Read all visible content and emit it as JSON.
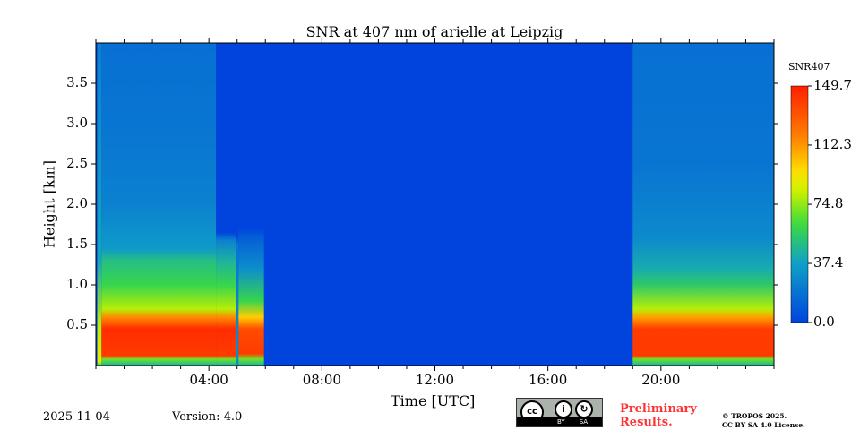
{
  "chart_data": {
    "type": "heatmap",
    "title": "SNR at 407 nm of arielle at Leipzig",
    "xlabel": "Time [UTC]",
    "ylabel": "Height [km]",
    "xlim_hours": [
      0,
      24
    ],
    "ylim": [
      0,
      4.0
    ],
    "xticks": [
      {
        "v": 4,
        "label": "04:00"
      },
      {
        "v": 8,
        "label": "08:00"
      },
      {
        "v": 12,
        "label": "12:00"
      },
      {
        "v": 16,
        "label": "16:00"
      },
      {
        "v": 20,
        "label": "20:00"
      }
    ],
    "yticks": [
      {
        "v": 0.5,
        "label": "0.5"
      },
      {
        "v": 1.0,
        "label": "1.0"
      },
      {
        "v": 1.5,
        "label": "1.5"
      },
      {
        "v": 2.0,
        "label": "2.0"
      },
      {
        "v": 2.5,
        "label": "2.5"
      },
      {
        "v": 3.0,
        "label": "3.0"
      },
      {
        "v": 3.5,
        "label": "3.5"
      }
    ],
    "colorbar": {
      "label": "SNR407",
      "min": 0,
      "max": 149.7,
      "ticks": [
        "0.0",
        "37.4",
        "74.8",
        "112.3",
        "149.7"
      ],
      "colormap": "jet"
    },
    "background_value": 0,
    "segments": [
      {
        "start": 0.05,
        "end": 0.2,
        "profile": [
          [
            0,
            60
          ],
          [
            0.05,
            90
          ],
          [
            0.5,
            80
          ],
          [
            1.3,
            40
          ],
          [
            4.0,
            25
          ]
        ]
      },
      {
        "start": 0.2,
        "end": 4.25,
        "profile": [
          [
            0,
            45
          ],
          [
            0.08,
            70
          ],
          [
            0.12,
            140
          ],
          [
            0.45,
            145
          ],
          [
            0.6,
            115
          ],
          [
            0.7,
            80
          ],
          [
            1.0,
            60
          ],
          [
            1.3,
            50
          ],
          [
            1.45,
            35
          ],
          [
            2.0,
            25
          ],
          [
            3.0,
            20
          ],
          [
            4.0,
            18
          ]
        ]
      },
      {
        "start": 4.25,
        "end": 4.95,
        "profile": [
          [
            0,
            45
          ],
          [
            0.08,
            70
          ],
          [
            0.12,
            140
          ],
          [
            0.45,
            145
          ],
          [
            0.6,
            115
          ],
          [
            0.7,
            80
          ],
          [
            1.0,
            60
          ],
          [
            1.3,
            45
          ],
          [
            1.55,
            25
          ],
          [
            1.65,
            0
          ],
          [
            4.0,
            0
          ]
        ]
      },
      {
        "start": 4.95,
        "end": 5.05,
        "profile": [
          [
            0,
            30
          ],
          [
            1.5,
            20
          ],
          [
            1.6,
            0
          ],
          [
            4.0,
            0
          ]
        ]
      },
      {
        "start": 5.05,
        "end": 5.95,
        "profile": [
          [
            0,
            45
          ],
          [
            0.08,
            70
          ],
          [
            0.15,
            140
          ],
          [
            0.45,
            135
          ],
          [
            0.6,
            100
          ],
          [
            0.8,
            60
          ],
          [
            1.2,
            30
          ],
          [
            1.6,
            10
          ],
          [
            1.7,
            0
          ],
          [
            4.0,
            0
          ]
        ]
      },
      {
        "start": 19.0,
        "end": 24.0,
        "profile": [
          [
            0,
            45
          ],
          [
            0.08,
            70
          ],
          [
            0.12,
            140
          ],
          [
            0.45,
            140
          ],
          [
            0.6,
            110
          ],
          [
            0.7,
            80
          ],
          [
            1.0,
            55
          ],
          [
            1.2,
            42
          ],
          [
            1.6,
            28
          ],
          [
            2.5,
            20
          ],
          [
            4.0,
            18
          ]
        ]
      }
    ]
  },
  "footer": {
    "date": "2025-11-04",
    "version": "Version: 4.0",
    "preliminary_line1": "Preliminary",
    "preliminary_line2": "Results.",
    "copyright_line1": "© TROPOS 2025.",
    "copyright_line2": "CC BY SA 4.0 License.",
    "license_badge": "CC BY SA"
  },
  "colors": {
    "preliminary": "#ff3333",
    "background": "#0044dd"
  }
}
